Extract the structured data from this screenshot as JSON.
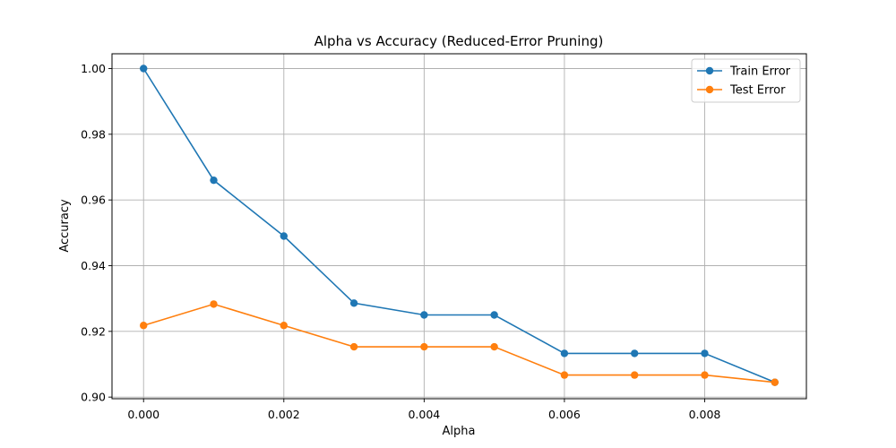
{
  "chart_data": {
    "type": "line",
    "title": "Alpha vs Accuracy (Reduced-Error Pruning)",
    "xlabel": "Alpha",
    "ylabel": "Accuracy",
    "x": [
      0.0,
      0.001,
      0.002,
      0.003,
      0.004,
      0.005,
      0.006,
      0.007,
      0.008,
      0.009
    ],
    "xlim": [
      -0.00045,
      0.00945
    ],
    "ylim": [
      0.8995,
      1.0045
    ],
    "xticks": [
      0.0,
      0.002,
      0.004,
      0.006,
      0.008
    ],
    "xtick_labels": [
      "0.000",
      "0.002",
      "0.004",
      "0.006",
      "0.008"
    ],
    "yticks": [
      0.9,
      0.92,
      0.94,
      0.96,
      0.98,
      1.0
    ],
    "ytick_labels": [
      "0.90",
      "0.92",
      "0.94",
      "0.96",
      "0.98",
      "1.00"
    ],
    "grid": true,
    "legend_position": "top-right",
    "series": [
      {
        "name": "Train Error",
        "color": "#1f77b4",
        "values": [
          1.0,
          0.966,
          0.949,
          0.9286,
          0.925,
          0.925,
          0.9133,
          0.9133,
          0.9133,
          0.9045
        ]
      },
      {
        "name": "Test Error",
        "color": "#ff7f0e",
        "values": [
          0.9218,
          0.9283,
          0.9218,
          0.9153,
          0.9153,
          0.9153,
          0.9067,
          0.9067,
          0.9067,
          0.9045
        ]
      }
    ]
  }
}
